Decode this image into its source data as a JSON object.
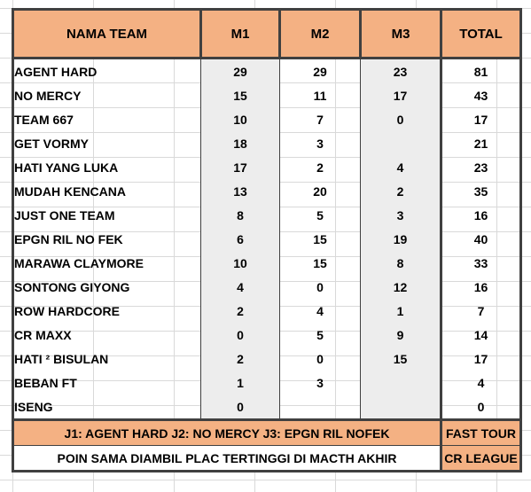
{
  "headers": {
    "name": "NAMA TEAM",
    "m1": "M1",
    "m2": "M2",
    "m3": "M3",
    "total": "TOTAL"
  },
  "rows": [
    {
      "name": "AGENT HARD",
      "m1": "29",
      "m2": "29",
      "m3": "23",
      "total": "81"
    },
    {
      "name": "NO MERCY",
      "m1": "15",
      "m2": "11",
      "m3": "17",
      "total": "43"
    },
    {
      "name": "TEAM 667",
      "m1": "10",
      "m2": "7",
      "m3": "0",
      "total": "17"
    },
    {
      "name": "GET VORMY",
      "m1": "18",
      "m2": "3",
      "m3": "",
      "total": "21"
    },
    {
      "name": "HATI YANG LUKA",
      "m1": "17",
      "m2": "2",
      "m3": "4",
      "total": "23"
    },
    {
      "name": "MUDAH KENCANA",
      "m1": "13",
      "m2": "20",
      "m3": "2",
      "total": "35"
    },
    {
      "name": "JUST ONE TEAM",
      "m1": "8",
      "m2": "5",
      "m3": "3",
      "total": "16"
    },
    {
      "name": "EPGN RIL NO FEK",
      "m1": "6",
      "m2": "15",
      "m3": "19",
      "total": "40"
    },
    {
      "name": "MARAWA CLAYMORE",
      "m1": "10",
      "m2": "15",
      "m3": "8",
      "total": "33"
    },
    {
      "name": "SONTONG GIYONG",
      "m1": "4",
      "m2": "0",
      "m3": "12",
      "total": "16"
    },
    {
      "name": "ROW HARDCORE",
      "m1": "2",
      "m2": "4",
      "m3": "1",
      "total": "7"
    },
    {
      "name": "CR MAXX",
      "m1": "0",
      "m2": "5",
      "m3": "9",
      "total": "14"
    },
    {
      "name": "HATI ² BISULAN",
      "m1": "2",
      "m2": "0",
      "m3": "15",
      "total": "17"
    },
    {
      "name": "BEBAN FT",
      "m1": "1",
      "m2": "3",
      "m3": "",
      "total": "4"
    },
    {
      "name": "ISENG",
      "m1": "0",
      "m2": "",
      "m3": "",
      "total": "0"
    }
  ],
  "footer": {
    "winners": "J1: AGENT HARD J2: NO MERCY J3: EPGN RIL NOFEK",
    "note": "POIN SAMA DIAMBIL PLAC TERTINGGI DI MACTH AKHIR",
    "side_top": "FAST TOUR",
    "side_bottom": "CR LEAGUE"
  },
  "colors": {
    "header_fill": "#f4b183",
    "shaded_column": "#ededed",
    "border": "#404040"
  }
}
